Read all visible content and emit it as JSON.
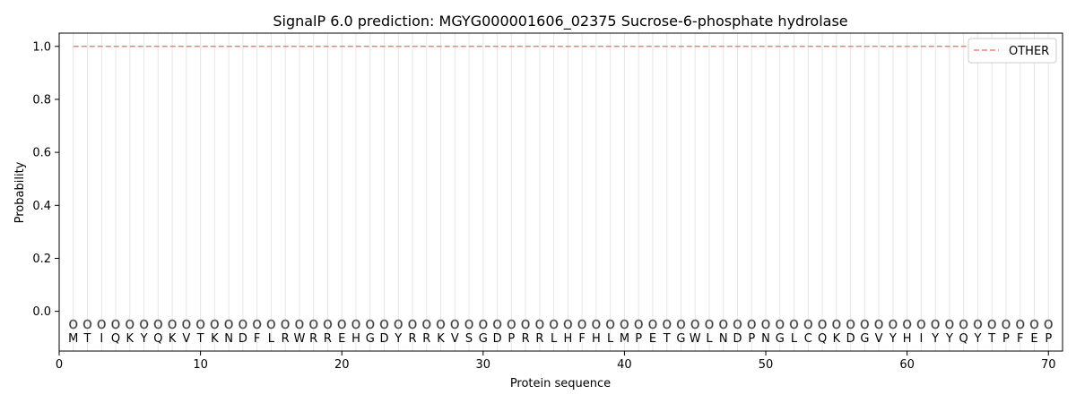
{
  "chart_data": {
    "type": "line",
    "title": "SignalP 6.0 prediction: MGYG000001606_02375 Sucrose-6-phosphate hydrolase",
    "xlabel": "Protein sequence",
    "ylabel": "Probability",
    "xlim": [
      0,
      71
    ],
    "ylim": [
      -0.15,
      1.05
    ],
    "xticks": [
      0,
      10,
      20,
      30,
      40,
      50,
      60,
      70
    ],
    "yticks": [
      0.0,
      0.2,
      0.4,
      0.6,
      0.8,
      1.0
    ],
    "xtick_labels": [
      "0",
      "10",
      "20",
      "30",
      "40",
      "50",
      "60",
      "70"
    ],
    "ytick_labels": [
      "0.0",
      "0.2",
      "0.4",
      "0.6",
      "0.8",
      "1.0"
    ],
    "grid": "vertical lines at each residue",
    "legend_position": "top-right",
    "sequence": [
      "M",
      "T",
      "I",
      "Q",
      "K",
      "Y",
      "Q",
      "K",
      "V",
      "T",
      "K",
      "N",
      "D",
      "F",
      "L",
      "R",
      "W",
      "R",
      "R",
      "E",
      "H",
      "G",
      "D",
      "Y",
      "R",
      "R",
      "K",
      "V",
      "S",
      "G",
      "D",
      "P",
      "R",
      "R",
      "L",
      "H",
      "F",
      "H",
      "L",
      "M",
      "P",
      "E",
      "T",
      "G",
      "W",
      "L",
      "N",
      "D",
      "P",
      "N",
      "G",
      "L",
      "C",
      "Q",
      "K",
      "D",
      "G",
      "V",
      "Y",
      "H",
      "I",
      "Y",
      "Y",
      "Q",
      "Y",
      "T",
      "P",
      "F",
      "E",
      "P"
    ],
    "predicted_label": "O",
    "series": [
      {
        "name": "OTHER",
        "style": "dashed",
        "color": "#f08080",
        "x_start": 1,
        "x_end": 70,
        "value": 1.0
      }
    ],
    "colors": {
      "other_line": "#f08080",
      "grid": "#e6e6e6",
      "marker": "#808080"
    }
  }
}
